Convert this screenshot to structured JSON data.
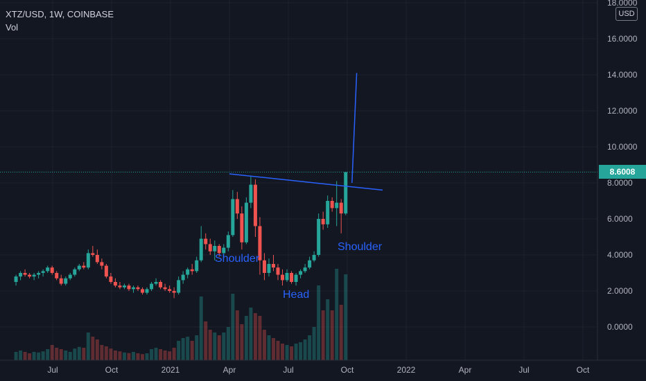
{
  "header": {
    "symbol_line": "XTZ/USD, 1W, COINBASE",
    "volume_label": "Vol"
  },
  "price_axis": {
    "unit": "USD"
  },
  "last_price": {
    "label": "8.6008",
    "value": 8.6008,
    "color": "#26a69a"
  },
  "annotations": {
    "left_shoulder": "Shoulder",
    "head": "Head",
    "right_shoulder": "Shoulder",
    "line_color": "#2962ff"
  },
  "colors": {
    "up": "#26a69a",
    "down": "#ef5350",
    "background": "#131722",
    "grid": "#1e222d"
  },
  "chart_data": {
    "type": "candlestick",
    "title": "XTZ/USD, 1W, COINBASE",
    "x_ticks": [
      "Jul",
      "Oct",
      "2021",
      "Apr",
      "Jul",
      "Oct",
      "2022",
      "Apr",
      "Jul",
      "Oct"
    ],
    "y_ticks": [
      "18.0000",
      "16.0000",
      "14.0000",
      "12.0000",
      "10.0000",
      "8.0000",
      "6.0000",
      "4.0000",
      "2.0000",
      "0.0000"
    ],
    "ylim": [
      -1.0,
      18.0
    ],
    "weeks_start": "2020-05-04",
    "candles": [
      [
        2.5,
        2.9,
        2.3,
        2.8
      ],
      [
        2.8,
        3.1,
        2.6,
        3.0
      ],
      [
        3.0,
        3.2,
        2.8,
        2.9
      ],
      [
        2.9,
        3.0,
        2.7,
        2.8
      ],
      [
        2.8,
        3.0,
        2.6,
        2.9
      ],
      [
        2.9,
        3.1,
        2.7,
        3.0
      ],
      [
        3.0,
        3.2,
        2.8,
        3.1
      ],
      [
        3.1,
        3.4,
        3.0,
        3.3
      ],
      [
        3.3,
        3.4,
        2.9,
        3.0
      ],
      [
        3.0,
        3.1,
        2.6,
        2.7
      ],
      [
        2.7,
        2.9,
        2.3,
        2.4
      ],
      [
        2.4,
        2.8,
        2.3,
        2.7
      ],
      [
        2.7,
        3.0,
        2.6,
        2.9
      ],
      [
        2.9,
        3.3,
        2.8,
        3.2
      ],
      [
        3.2,
        3.5,
        3.1,
        3.4
      ],
      [
        3.4,
        3.6,
        3.2,
        3.3
      ],
      [
        3.3,
        4.3,
        3.2,
        4.1
      ],
      [
        4.1,
        4.5,
        3.9,
        4.0
      ],
      [
        4.0,
        4.3,
        3.5,
        3.6
      ],
      [
        3.6,
        3.8,
        3.2,
        3.4
      ],
      [
        3.4,
        3.5,
        2.7,
        2.8
      ],
      [
        2.8,
        3.0,
        2.4,
        2.5
      ],
      [
        2.5,
        2.7,
        2.2,
        2.3
      ],
      [
        2.3,
        2.5,
        2.1,
        2.2
      ],
      [
        2.2,
        2.4,
        2.1,
        2.3
      ],
      [
        2.3,
        2.4,
        2.0,
        2.1
      ],
      [
        2.1,
        2.3,
        1.9,
        2.2
      ],
      [
        2.2,
        2.3,
        2.0,
        2.1
      ],
      [
        2.1,
        2.2,
        1.8,
        1.9
      ],
      [
        1.9,
        2.2,
        1.8,
        2.1
      ],
      [
        2.1,
        2.5,
        2.0,
        2.4
      ],
      [
        2.4,
        2.7,
        2.3,
        2.5
      ],
      [
        2.5,
        2.6,
        2.1,
        2.2
      ],
      [
        2.2,
        2.4,
        2.0,
        2.1
      ],
      [
        2.1,
        2.3,
        1.9,
        2.0
      ],
      [
        2.0,
        2.2,
        1.6,
        1.9
      ],
      [
        1.9,
        2.8,
        1.8,
        2.6
      ],
      [
        2.6,
        3.1,
        2.4,
        2.9
      ],
      [
        2.9,
        3.3,
        2.7,
        3.2
      ],
      [
        3.2,
        3.5,
        2.9,
        3.1
      ],
      [
        3.1,
        3.9,
        3.0,
        3.7
      ],
      [
        3.7,
        5.6,
        3.6,
        4.9
      ],
      [
        4.9,
        5.2,
        4.3,
        4.6
      ],
      [
        4.6,
        4.9,
        4.0,
        4.2
      ],
      [
        4.2,
        4.8,
        3.7,
        4.5
      ],
      [
        4.5,
        4.6,
        3.9,
        4.1
      ],
      [
        4.1,
        4.6,
        3.9,
        4.4
      ],
      [
        4.4,
        5.3,
        4.2,
        5.1
      ],
      [
        5.1,
        7.6,
        5.0,
        7.1
      ],
      [
        7.1,
        7.5,
        6.0,
        6.3
      ],
      [
        6.3,
        6.7,
        4.3,
        4.7
      ],
      [
        4.7,
        7.2,
        4.6,
        6.9
      ],
      [
        6.9,
        8.4,
        6.6,
        7.9
      ],
      [
        7.9,
        8.2,
        5.0,
        5.6
      ],
      [
        5.6,
        6.1,
        2.9,
        3.7
      ],
      [
        3.7,
        4.1,
        2.6,
        3.0
      ],
      [
        3.0,
        3.8,
        2.8,
        3.5
      ],
      [
        3.5,
        4.0,
        3.1,
        3.3
      ],
      [
        3.3,
        3.5,
        2.6,
        2.9
      ],
      [
        2.9,
        3.2,
        2.3,
        2.6
      ],
      [
        2.6,
        3.2,
        2.5,
        3.0
      ],
      [
        3.0,
        3.1,
        2.4,
        2.5
      ],
      [
        2.5,
        3.0,
        2.3,
        2.9
      ],
      [
        2.9,
        3.2,
        2.7,
        3.1
      ],
      [
        3.1,
        3.5,
        3.0,
        3.3
      ],
      [
        3.3,
        3.9,
        3.2,
        3.7
      ],
      [
        3.7,
        4.2,
        3.6,
        4.0
      ],
      [
        4.0,
        6.3,
        3.9,
        6.0
      ],
      [
        6.0,
        6.4,
        5.4,
        5.7
      ],
      [
        5.7,
        7.3,
        5.5,
        7.0
      ],
      [
        7.0,
        7.2,
        6.4,
        6.6
      ],
      [
        6.6,
        8.1,
        5.6,
        6.9
      ],
      [
        6.9,
        7.1,
        5.2,
        6.3
      ],
      [
        6.3,
        8.6,
        6.2,
        8.6
      ]
    ],
    "volume": [
      0.3,
      0.35,
      0.3,
      0.25,
      0.3,
      0.28,
      0.32,
      0.4,
      0.55,
      0.45,
      0.4,
      0.35,
      0.3,
      0.42,
      0.48,
      0.45,
      1.0,
      0.85,
      0.75,
      0.55,
      0.5,
      0.42,
      0.35,
      0.32,
      0.28,
      0.26,
      0.3,
      0.25,
      0.22,
      0.25,
      0.4,
      0.45,
      0.4,
      0.35,
      0.32,
      0.45,
      0.7,
      0.8,
      0.85,
      0.7,
      0.9,
      2.3,
      1.4,
      1.1,
      1.0,
      0.9,
      1.0,
      1.2,
      2.4,
      1.8,
      1.3,
      1.6,
      1.9,
      1.7,
      1.6,
      1.1,
      0.9,
      0.8,
      0.7,
      0.6,
      0.55,
      0.5,
      0.6,
      0.65,
      0.75,
      0.9,
      1.2,
      2.7,
      1.8,
      2.2,
      1.8,
      3.3,
      2.0,
      3.1
    ],
    "annotations": {
      "neckline": [
        [
          2021.25,
          8.5
        ],
        [
          2021.9,
          7.6
        ]
      ],
      "target": [
        [
          2021.77,
          8.0
        ],
        [
          2021.79,
          14.1
        ]
      ]
    }
  }
}
